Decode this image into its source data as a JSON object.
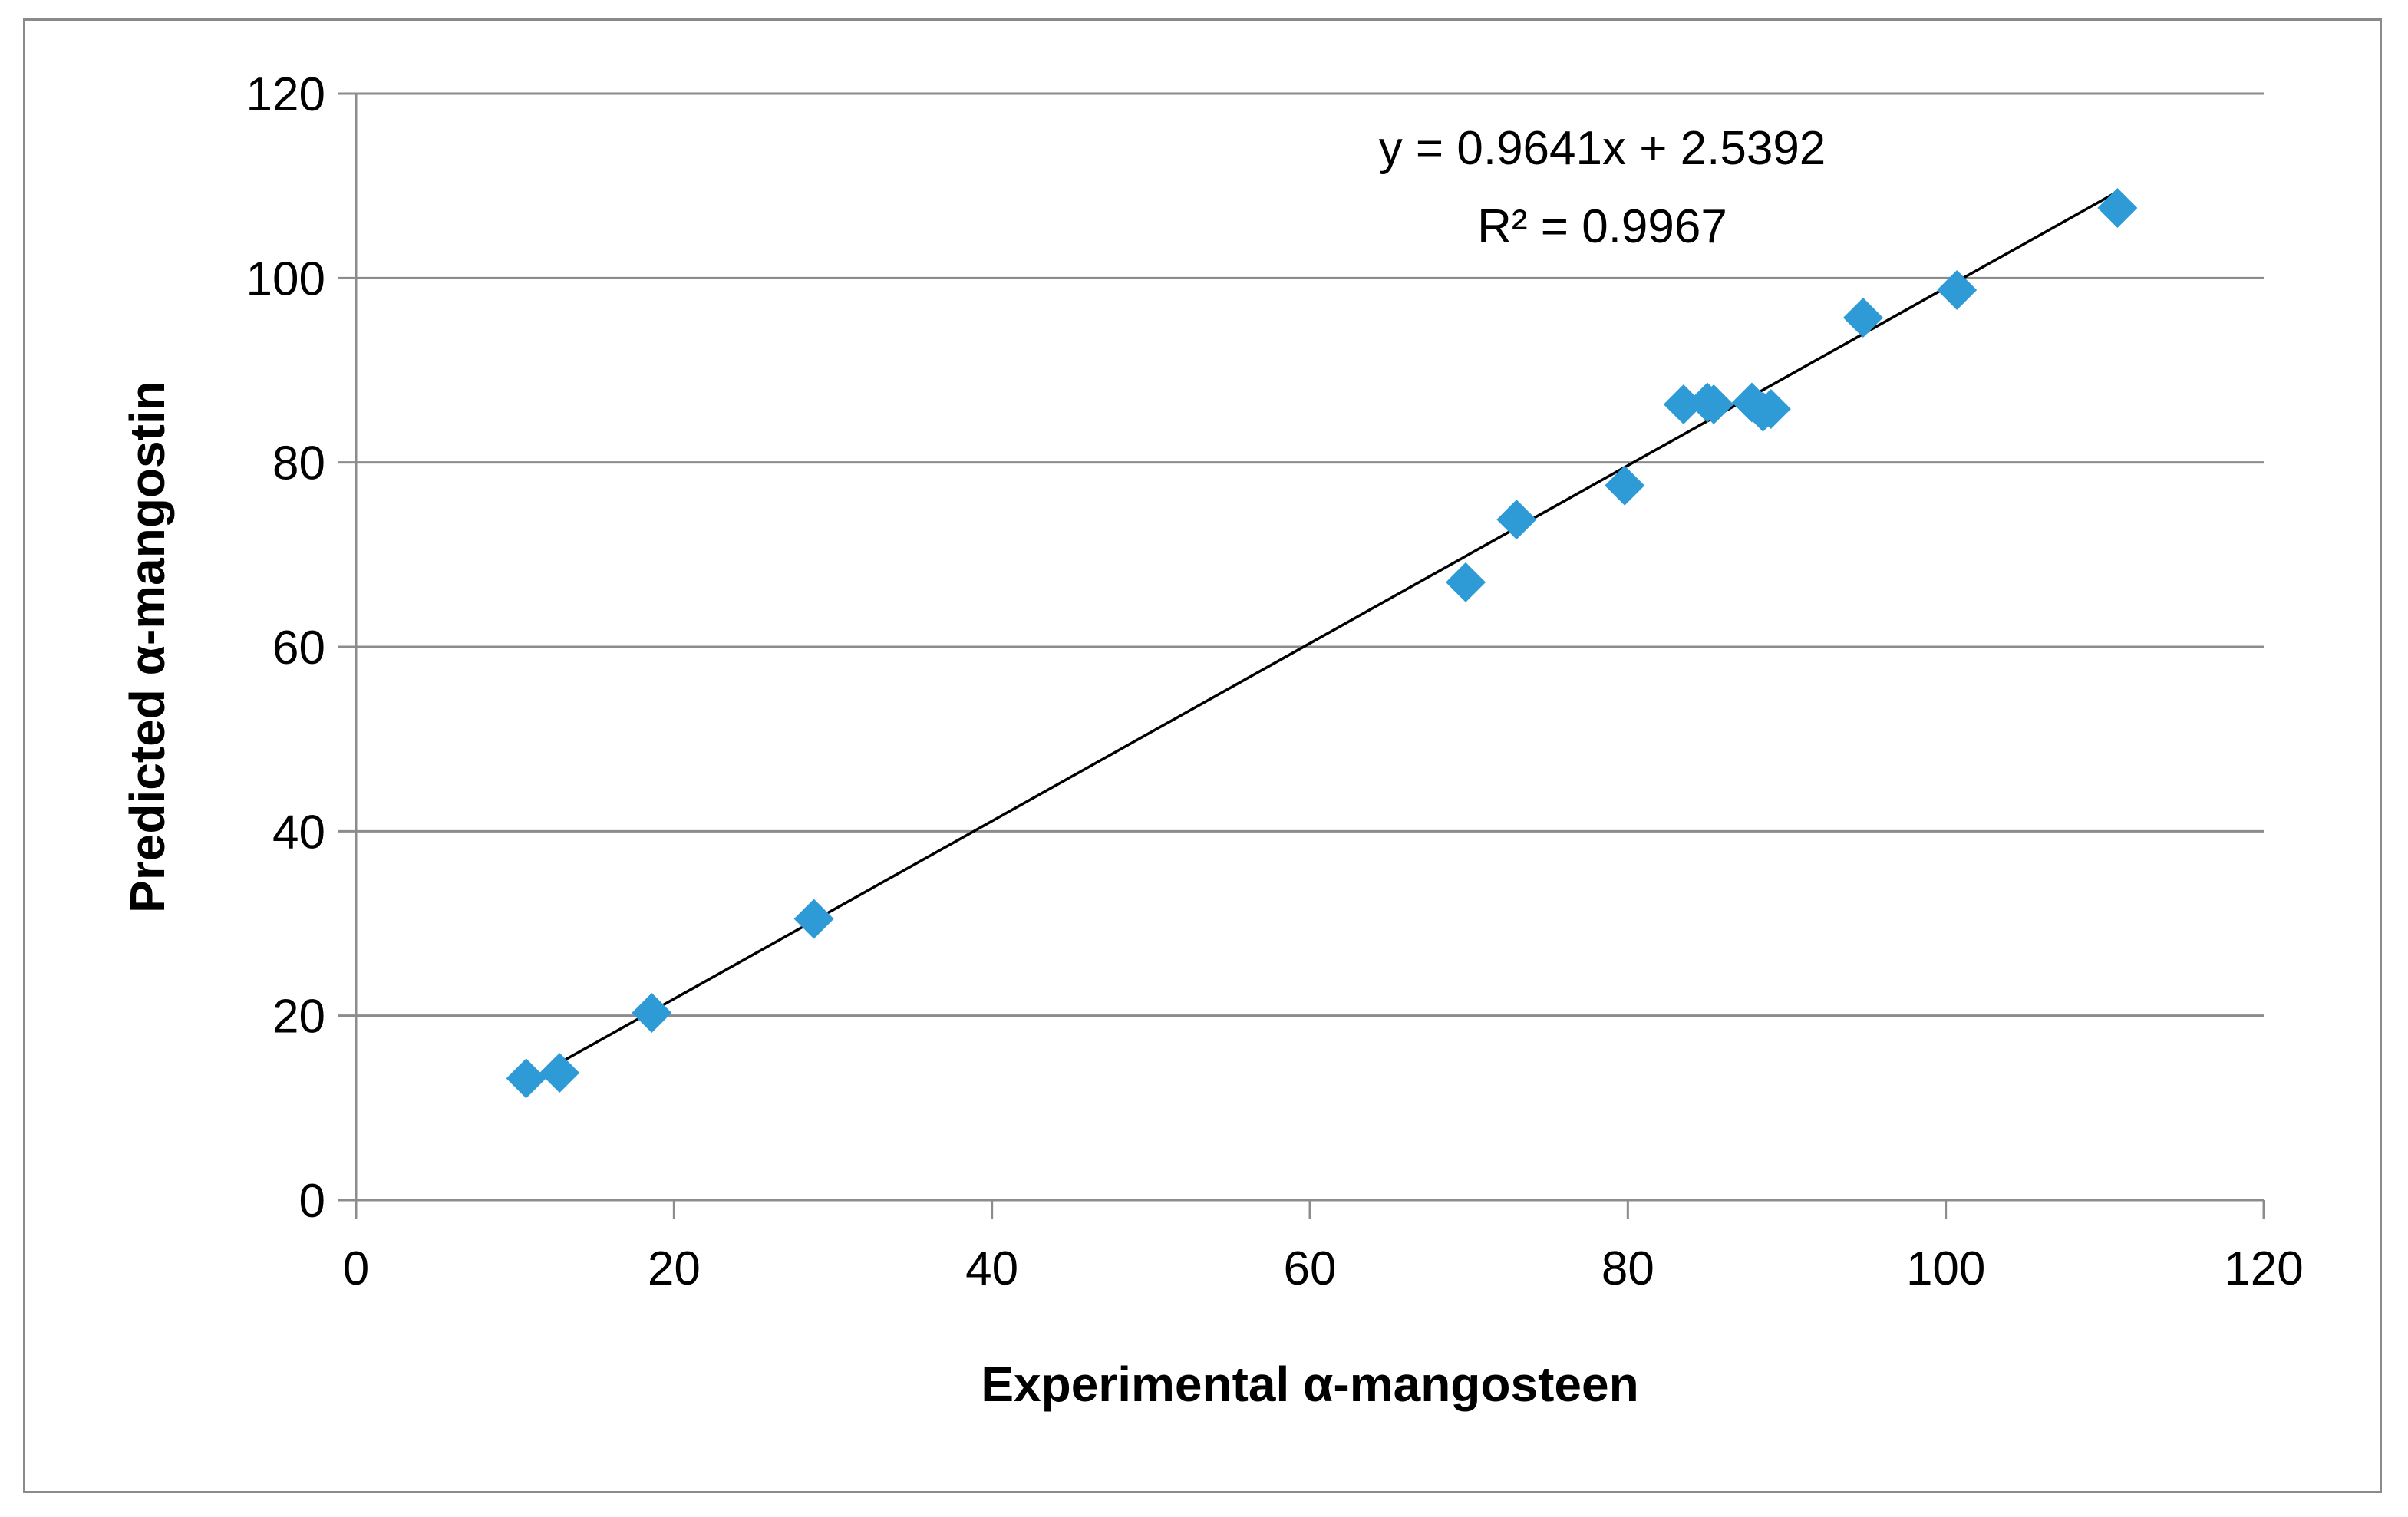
{
  "chart_data": {
    "type": "scatter",
    "title": "",
    "xlabel": "Experimental α-mangosteen",
    "ylabel": "Predicted α-mangostin",
    "xlim": [
      0,
      120
    ],
    "ylim": [
      0,
      120
    ],
    "xticks": [
      0,
      20,
      40,
      60,
      80,
      100,
      120
    ],
    "yticks": [
      0,
      20,
      40,
      60,
      80,
      100,
      120
    ],
    "grid": "horizontal",
    "marker": "diamond",
    "marker_color": "#2e9bd6",
    "series": [
      {
        "name": "samples",
        "x": [
          10.7,
          12.8,
          18.6,
          28.8,
          69.8,
          73.0,
          79.8,
          83.5,
          85.0,
          85.4,
          87.8,
          88.5,
          89.0,
          94.8,
          100.7,
          110.8
        ],
        "y": [
          13.2,
          13.8,
          20.3,
          30.5,
          67.0,
          73.8,
          77.5,
          86.3,
          86.5,
          86.3,
          86.5,
          85.5,
          85.8,
          95.7,
          98.7,
          107.6
        ]
      }
    ],
    "trendline": {
      "slope": 0.9641,
      "intercept": 2.5392,
      "x_range": [
        10.7,
        110.8
      ],
      "equation_text": "y = 0.9641x + 2.5392",
      "r2_text": "R² = 0.9967"
    }
  }
}
